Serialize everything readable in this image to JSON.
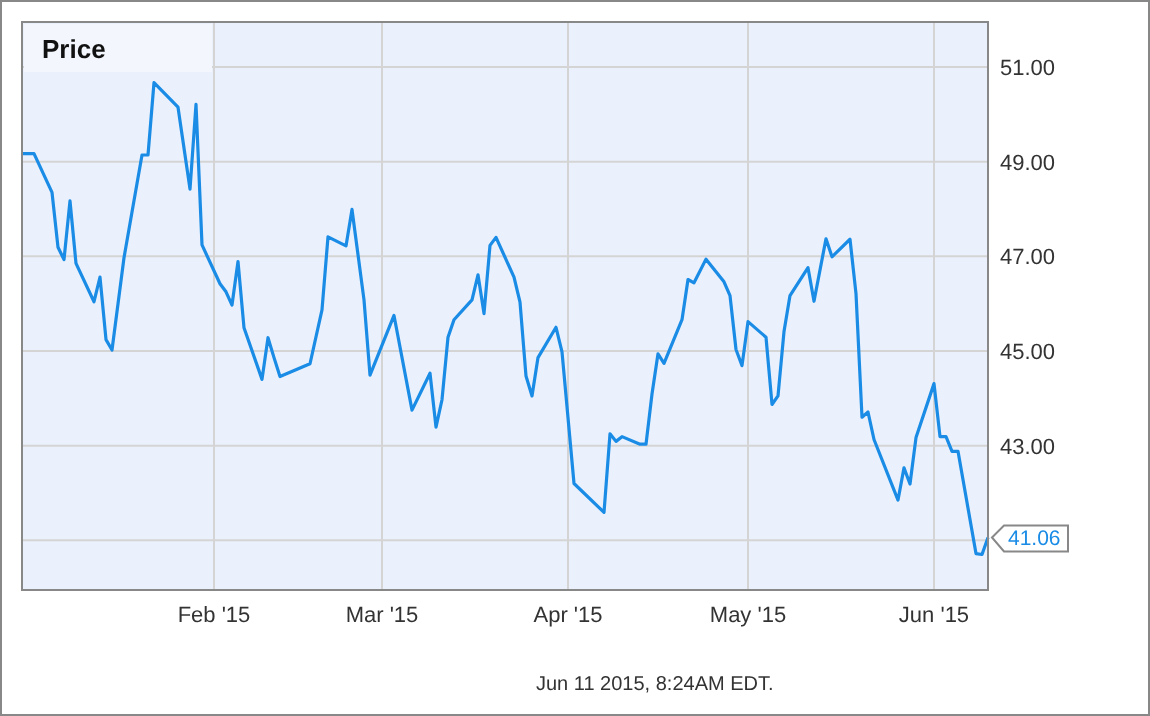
{
  "chart_data": {
    "type": "line",
    "title": "Price",
    "x": [
      "2014-12-31",
      "2015-01-02",
      "2015-01-05",
      "2015-01-06",
      "2015-01-07",
      "2015-01-08",
      "2015-01-09",
      "2015-01-12",
      "2015-01-13",
      "2015-01-14",
      "2015-01-15",
      "2015-01-17",
      "2015-01-20",
      "2015-01-21",
      "2015-01-22",
      "2015-01-26",
      "2015-01-28",
      "2015-01-29",
      "2015-01-30",
      "2015-02-02",
      "2015-02-03",
      "2015-02-04",
      "2015-02-05",
      "2015-02-06",
      "2015-02-09",
      "2015-02-10",
      "2015-02-11",
      "2015-02-12",
      "2015-02-17",
      "2015-02-19",
      "2015-02-20",
      "2015-02-23",
      "2015-02-24",
      "2015-02-26",
      "2015-02-27",
      "2015-03-03",
      "2015-03-06",
      "2015-03-09",
      "2015-03-10",
      "2015-03-11",
      "2015-03-12",
      "2015-03-13",
      "2015-03-16",
      "2015-03-17",
      "2015-03-18",
      "2015-03-19",
      "2015-03-20",
      "2015-03-23",
      "2015-03-24",
      "2015-03-25",
      "2015-03-26",
      "2015-03-27",
      "2015-03-30",
      "2015-03-31",
      "2015-04-02",
      "2015-04-07",
      "2015-04-08",
      "2015-04-09",
      "2015-04-10",
      "2015-04-13",
      "2015-04-14",
      "2015-04-15",
      "2015-04-16",
      "2015-04-17",
      "2015-04-20",
      "2015-04-21",
      "2015-04-22",
      "2015-04-24",
      "2015-04-27",
      "2015-04-28",
      "2015-04-29",
      "2015-04-30",
      "2015-05-01",
      "2015-05-04",
      "2015-05-05",
      "2015-05-06",
      "2015-05-07",
      "2015-05-08",
      "2015-05-11",
      "2015-05-12",
      "2015-05-14",
      "2015-05-15",
      "2015-05-18",
      "2015-05-19",
      "2015-05-20",
      "2015-05-21",
      "2015-05-22",
      "2015-05-26",
      "2015-05-27",
      "2015-05-28",
      "2015-05-29",
      "2015-06-01",
      "2015-06-02",
      "2015-06-03",
      "2015-06-04",
      "2015-06-05",
      "2015-06-08",
      "2015-06-09",
      "2015-06-10"
    ],
    "series": [
      {
        "color": "#1a8ce6",
        "values": [
          49.17,
          49.17,
          48.35,
          47.19,
          46.93,
          48.17,
          46.85,
          46.04,
          46.56,
          45.24,
          45.02,
          46.97,
          49.14,
          49.14,
          50.67,
          50.15,
          48.42,
          50.21,
          47.24,
          46.42,
          46.25,
          45.97,
          46.89,
          45.49,
          44.4,
          45.28,
          44.86,
          44.46,
          44.73,
          45.87,
          47.41,
          47.22,
          47.99,
          46.08,
          44.49,
          45.75,
          43.75,
          44.53,
          43.39,
          43.97,
          45.29,
          45.66,
          46.08,
          46.61,
          45.79,
          47.23,
          47.4,
          46.56,
          46.03,
          44.47,
          44.05,
          44.86,
          45.5,
          44.98,
          42.2,
          41.59,
          43.25,
          43.09,
          43.19,
          43.03,
          43.03,
          44.09,
          44.94,
          44.74,
          45.66,
          46.51,
          46.44,
          46.94,
          46.46,
          46.17,
          45.03,
          44.69,
          45.62,
          45.29,
          43.87,
          44.05,
          45.41,
          46.17,
          46.76,
          46.05,
          47.37,
          46.99,
          47.36,
          46.21,
          43.6,
          43.71,
          43.13,
          41.85,
          42.53,
          42.19,
          43.17,
          44.31,
          43.19,
          43.19,
          42.88,
          42.88,
          40.72,
          40.7,
          41.06
        ]
      }
    ],
    "xlim": [
      "2014-12-31",
      "2015-06-10"
    ],
    "xticks": [
      {
        "value": "2015-02-01",
        "label": "Feb '15"
      },
      {
        "value": "2015-03-01",
        "label": "Mar '15"
      },
      {
        "value": "2015-04-01",
        "label": "Apr '15"
      },
      {
        "value": "2015-05-01",
        "label": "May '15"
      },
      {
        "value": "2015-06-01",
        "label": "Jun '15"
      }
    ],
    "ylim": [
      39.95,
      51.95
    ],
    "yticks": [
      {
        "value": 41,
        "label": null
      },
      {
        "value": 43,
        "label": "43.00"
      },
      {
        "value": 45,
        "label": "45.00"
      },
      {
        "value": 47,
        "label": "47.00"
      },
      {
        "value": 49,
        "label": "49.00"
      },
      {
        "value": 51,
        "label": "51.00"
      }
    ],
    "grid": true,
    "line_style": "solid",
    "annotations": [
      {
        "text": "41.06",
        "x": "2015-06-10",
        "y": 41.06
      },
      "Jun 11 2015, 8:24AM EDT."
    ]
  }
}
